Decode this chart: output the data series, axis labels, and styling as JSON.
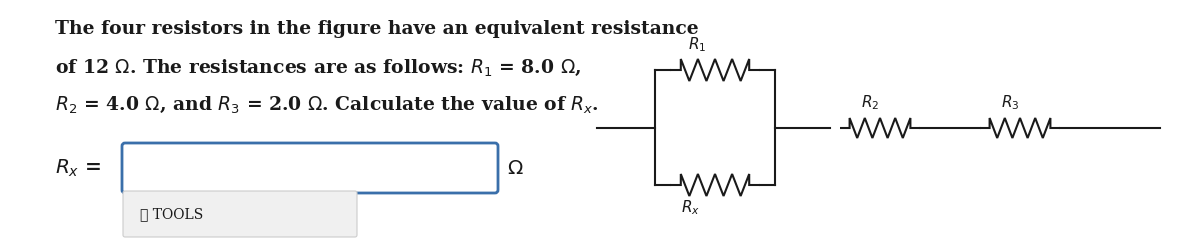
{
  "problem_text_line1": "The four resistors in the figure have an equivalent resistance",
  "problem_text_line2": "of 12 Ω. The resistances are as follows: $R_1$ = 8.0 Ω,",
  "problem_text_line3": "$R_2$ = 4.0 Ω, and $R_3$ = 2.0 Ω. Calculate the value of $R_x$.",
  "answer_label": "$R_x$ =",
  "answer_unit": "Ω",
  "tools_label": "✓ TOOLS",
  "bg_color": "#ffffff",
  "text_color": "#1a1a1a",
  "box_color": "#3a6faa",
  "tools_bg": "#f0f0f0",
  "circuit_color": "#1a1a1a",
  "fig_width": 12.0,
  "fig_height": 2.5
}
